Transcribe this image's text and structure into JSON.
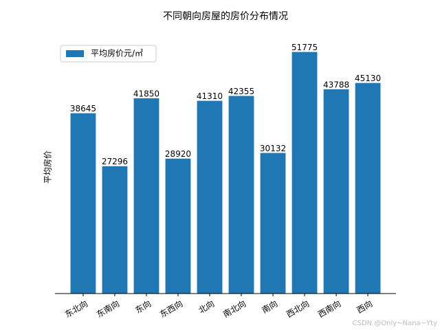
{
  "chart_data": {
    "type": "bar",
    "title": "不同朝向房屋的房价分布情况",
    "y_label": "平均房价",
    "categories": [
      "东北向",
      "东南向",
      "东向",
      "东西向",
      "北向",
      "南北向",
      "南向",
      "西北向",
      "西南向",
      "西向"
    ],
    "series": [
      {
        "name": "平均房价元/㎡",
        "color": "#1f77b4",
        "values": [
          38645,
          27296,
          41850,
          28920,
          41310,
          42355,
          30132,
          51775,
          43788,
          45130
        ]
      }
    ],
    "ylim": [
      0,
      54364
    ],
    "legend": "upper left",
    "watermark": "CSDN @Only~Nana~Yty"
  }
}
